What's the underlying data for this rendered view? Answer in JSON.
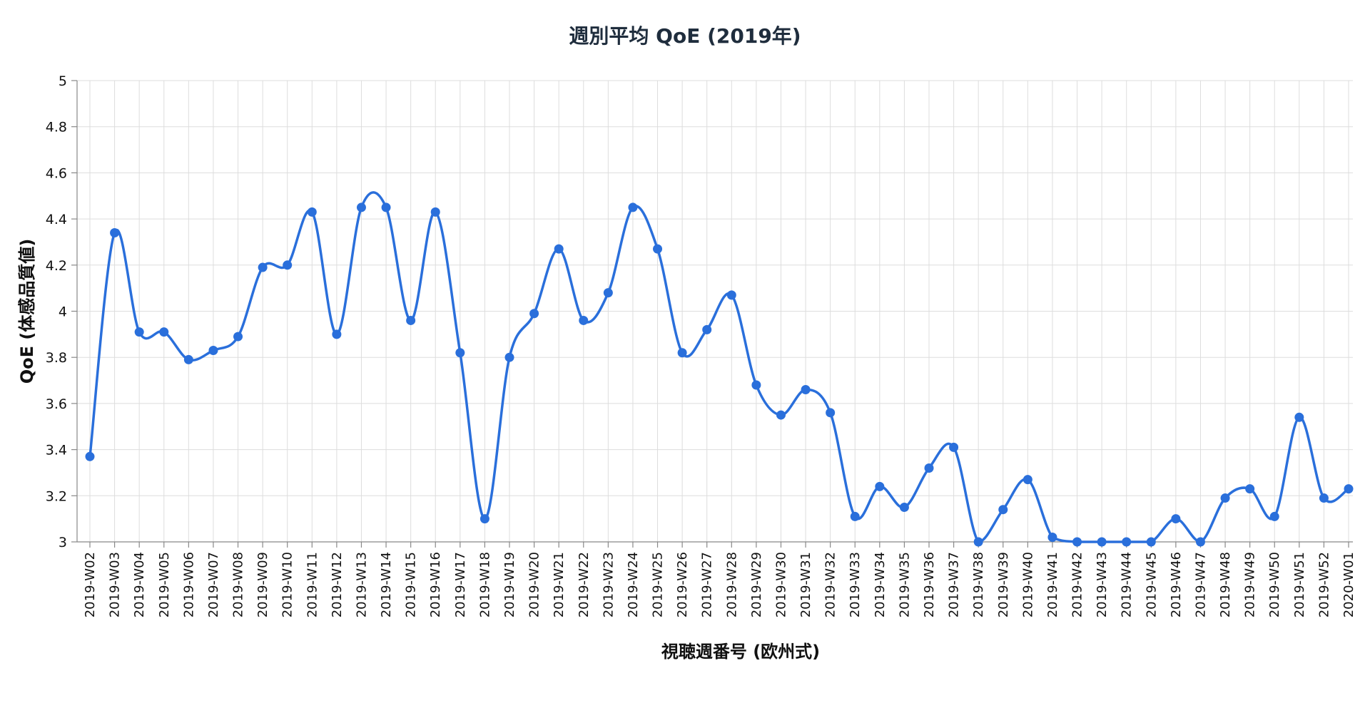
{
  "chart_data": {
    "type": "line",
    "title": "週別平均 QoE (2019年)",
    "xlabel": "視聴週番号 (欧州式)",
    "ylabel": "QoE (体感品質値)",
    "ylim": [
      3,
      5
    ],
    "yticks": [
      "3",
      "3.2",
      "3.4",
      "3.6",
      "3.8",
      "4",
      "4.2",
      "4.4",
      "4.6",
      "4.8",
      "5"
    ],
    "grid": true,
    "line_color": "#2a6fdb",
    "categories": [
      "2019-W02",
      "2019-W03",
      "2019-W04",
      "2019-W05",
      "2019-W06",
      "2019-W07",
      "2019-W08",
      "2019-W09",
      "2019-W10",
      "2019-W11",
      "2019-W12",
      "2019-W13",
      "2019-W14",
      "2019-W15",
      "2019-W16",
      "2019-W17",
      "2019-W18",
      "2019-W19",
      "2019-W20",
      "2019-W21",
      "2019-W22",
      "2019-W23",
      "2019-W24",
      "2019-W25",
      "2019-W26",
      "2019-W27",
      "2019-W28",
      "2019-W29",
      "2019-W30",
      "2019-W31",
      "2019-W32",
      "2019-W33",
      "2019-W34",
      "2019-W35",
      "2019-W36",
      "2019-W37",
      "2019-W38",
      "2019-W39",
      "2019-W40",
      "2019-W41",
      "2019-W42",
      "2019-W43",
      "2019-W44",
      "2019-W45",
      "2019-W46",
      "2019-W47",
      "2019-W48",
      "2019-W49",
      "2019-W50",
      "2019-W51",
      "2019-W52",
      "2020-W01"
    ],
    "values": [
      3.37,
      4.34,
      3.91,
      3.91,
      3.79,
      3.83,
      3.89,
      4.19,
      4.2,
      4.43,
      3.9,
      4.45,
      4.45,
      3.96,
      4.43,
      3.82,
      3.1,
      3.8,
      3.99,
      4.27,
      3.96,
      4.08,
      4.45,
      4.27,
      3.82,
      3.92,
      4.07,
      3.68,
      3.55,
      3.66,
      3.56,
      3.11,
      3.24,
      3.15,
      3.32,
      3.41,
      3.0,
      3.14,
      3.27,
      3.02,
      3.0,
      3.0,
      3.0,
      3.0,
      3.1,
      3.0,
      3.19,
      3.23,
      3.11,
      3.54,
      3.19,
      3.23
    ]
  }
}
